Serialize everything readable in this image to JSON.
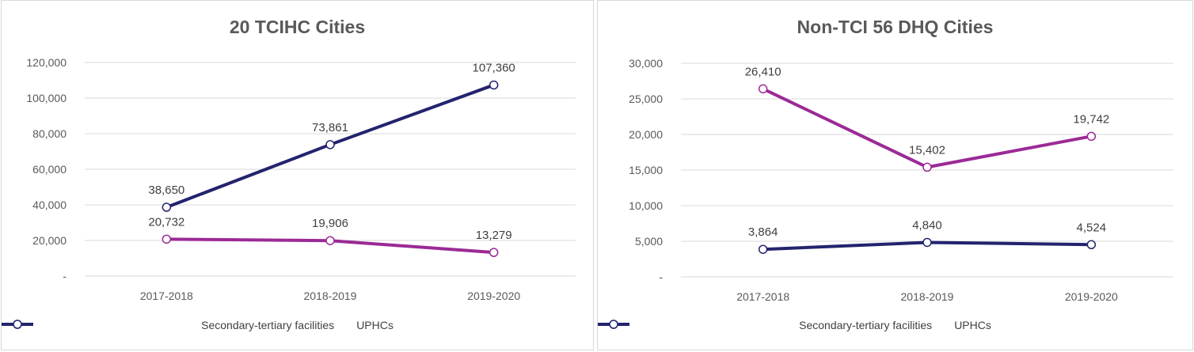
{
  "chart_data": [
    {
      "type": "line",
      "title": "20 TCIHC Cities",
      "categories": [
        "2017-2018",
        "2018-2019",
        "2019-2020"
      ],
      "ylim": [
        0,
        120000
      ],
      "y_ticks": [
        "-",
        "20,000",
        "40,000",
        "60,000",
        "80,000",
        "100,000",
        "120,000"
      ],
      "grid": true,
      "legend_position": "bottom",
      "series": [
        {
          "name": "Secondary-tertiary facilities",
          "color": "#9b2a96",
          "values": [
            20732,
            19906,
            13279
          ],
          "labels": [
            "20,732",
            "19,906",
            "13,279"
          ]
        },
        {
          "name": "UPHCs",
          "color": "#23236e",
          "values": [
            38650,
            73861,
            107360
          ],
          "labels": [
            "38,650",
            "73,861",
            "107,360"
          ]
        }
      ]
    },
    {
      "type": "line",
      "title": "Non-TCI 56 DHQ Cities",
      "categories": [
        "2017-2018",
        "2018-2019",
        "2019-2020"
      ],
      "ylim": [
        0,
        30000
      ],
      "y_ticks": [
        "-",
        "5,000",
        "10,000",
        "15,000",
        "20,000",
        "25,000",
        "30,000"
      ],
      "grid": true,
      "legend_position": "bottom",
      "series": [
        {
          "name": "Secondary-tertiary facilities",
          "color": "#9b2a96",
          "values": [
            26410,
            15402,
            19742
          ],
          "labels": [
            "26,410",
            "15,402",
            "19,742"
          ]
        },
        {
          "name": "UPHCs",
          "color": "#23236e",
          "values": [
            3864,
            4840,
            4524
          ],
          "labels": [
            "3,864",
            "4,840",
            "4,524"
          ]
        }
      ]
    }
  ]
}
